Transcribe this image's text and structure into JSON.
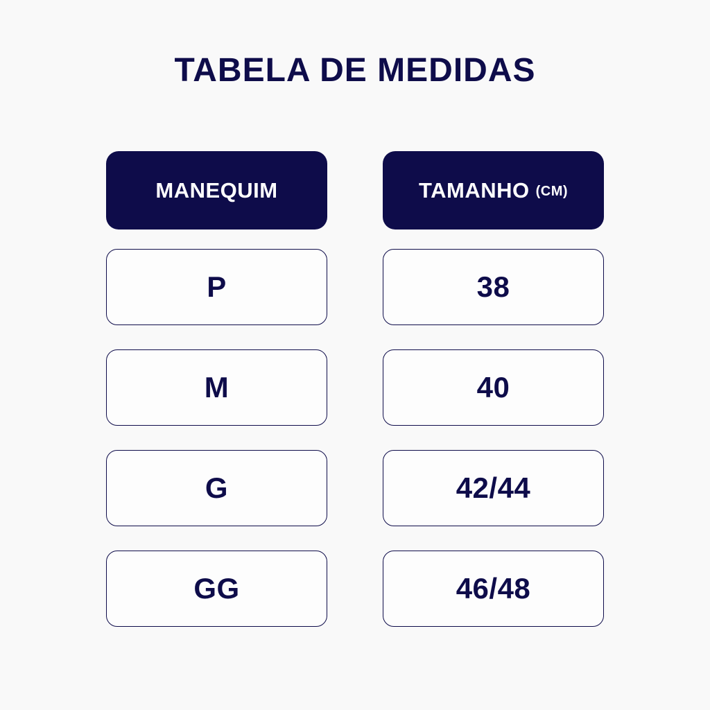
{
  "page": {
    "title": "TABELA DE MEDIDAS",
    "background_color": "#f9f9f9",
    "navy_color": "#0e0c4a",
    "cell_background_color": "#fdfdfd",
    "header_text_color": "#ffffff"
  },
  "table": {
    "columns": [
      {
        "header": "MANEQUIM",
        "unit": ""
      },
      {
        "header": "TAMANHO",
        "unit": "(CM)"
      }
    ],
    "rows": [
      {
        "manequim": "P",
        "tamanho": "38"
      },
      {
        "manequim": "M",
        "tamanho": "40"
      },
      {
        "manequim": "G",
        "tamanho": "42/44"
      },
      {
        "manequim": "GG",
        "tamanho": "46/48"
      }
    ]
  },
  "chart_data": {
    "type": "table",
    "title": "TABELA DE MEDIDAS",
    "columns": [
      "MANEQUIM",
      "TAMANHO (CM)"
    ],
    "rows": [
      [
        "P",
        "38"
      ],
      [
        "M",
        "40"
      ],
      [
        "G",
        "42/44"
      ],
      [
        "GG",
        "46/48"
      ]
    ]
  }
}
